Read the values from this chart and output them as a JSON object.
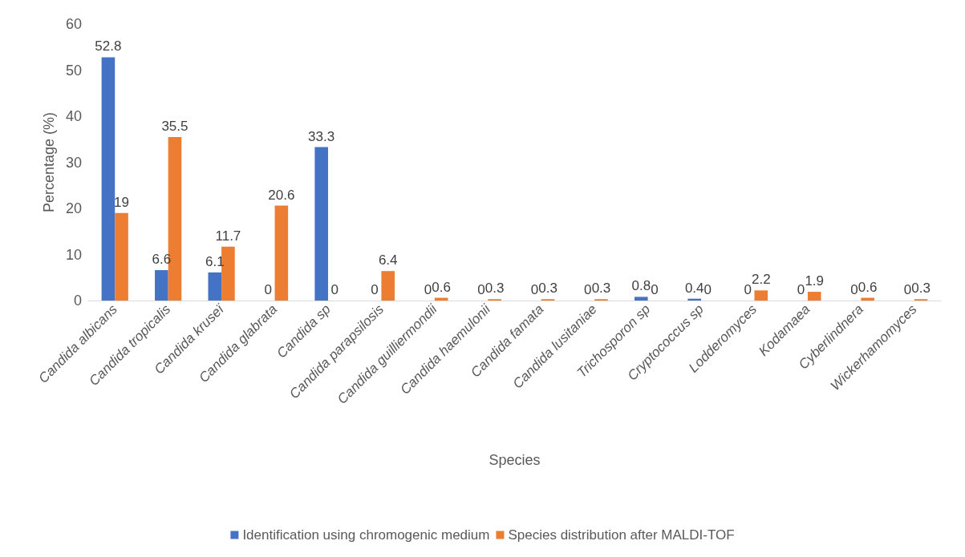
{
  "chart_data": {
    "type": "bar",
    "xlabel": "Species",
    "ylabel": "Percentage (%)",
    "categories": [
      "Candida albicans",
      "Candida tropicalis",
      "Candida kruseï",
      "Candida glabrata",
      "Candida sp",
      "Candida parapsilosis",
      "Candida guilliermondii",
      "Candida haemulonii",
      "Candida famata",
      "Candida lusitaniae",
      "Trichosporon sp",
      "Cryptococcus sp",
      "Lodderomyces",
      "Kodamaea",
      "Cyberlindnera",
      "Wickerhamomyces"
    ],
    "series": [
      {
        "name": "Identification using chromogenic medium",
        "color": "#4472c4",
        "values": [
          52.8,
          6.6,
          6.1,
          0,
          33.3,
          0,
          0,
          0,
          0,
          0,
          0.8,
          0.4,
          0,
          0,
          0,
          0
        ]
      },
      {
        "name": "Species distribution after MALDI-TOF",
        "color": "#ed7d31",
        "values": [
          19,
          35.5,
          11.7,
          20.6,
          0,
          6.4,
          0.6,
          0.3,
          0.3,
          0.3,
          0,
          0,
          2.2,
          1.9,
          0.6,
          0.3
        ]
      }
    ],
    "ylim": [
      0,
      60
    ],
    "yticks": [
      0,
      10,
      20,
      30,
      40,
      50,
      60
    ],
    "grid": false,
    "legend": "bottom",
    "data_labels": true
  }
}
